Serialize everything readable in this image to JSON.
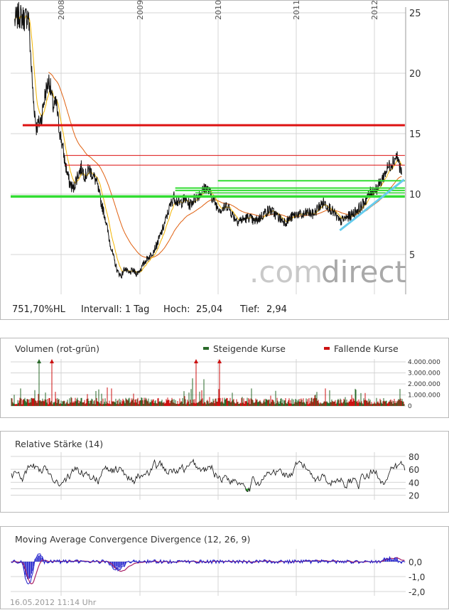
{
  "price_panel": {
    "info": {
      "perf": "751,70%HL",
      "interval": "Intervall: 1 Tag",
      "high_label": "Hoch:",
      "high_value": "25,04",
      "low_label": "Tief:",
      "low_value": "2,94"
    },
    "watermark_dot": ".com",
    "watermark_brand": "direct"
  },
  "volume_panel": {
    "title": "Volumen (rot-grün)",
    "legend_up": "Steigende Kurse",
    "legend_down": "Fallende Kurse"
  },
  "rsi_panel": {
    "title": "Relative Stärke (14)"
  },
  "macd_panel": {
    "title": "Moving Average Convergence Divergence (12, 26, 9)"
  },
  "footer": {
    "timestamp": "16.05.2012 11:14 Uhr"
  },
  "colors": {
    "price": "#111111",
    "ma_short": "#f2b400",
    "ma_long": "#e06010",
    "support": "#33dd33",
    "resistance": "#dd1111",
    "trend": "#66ccee",
    "volume_up": "#2a6a2a",
    "volume_down": "#cc1111",
    "macd": "#2222cc",
    "signal": "#aa2266",
    "watermark": "#c4c4c4"
  },
  "chart_data": [
    {
      "type": "line",
      "x_ticks": [
        "2008",
        "2009",
        "2010",
        "2011",
        "2012"
      ],
      "y_ticks": [
        "5",
        "10",
        "15",
        "20",
        "25"
      ],
      "ylim": [
        1.8,
        25.8
      ],
      "grid": true,
      "anchors": [
        [
          2007.55,
          24.3
        ],
        [
          2007.6,
          24.8
        ],
        [
          2007.68,
          24.5
        ],
        [
          2007.72,
          24.9
        ],
        [
          2007.78,
          18.0
        ],
        [
          2007.82,
          15.5
        ],
        [
          2007.88,
          16.2
        ],
        [
          2007.93,
          18.3
        ],
        [
          2007.98,
          19.5
        ],
        [
          2008.03,
          17.2
        ],
        [
          2008.07,
          17.5
        ],
        [
          2008.1,
          15.6
        ],
        [
          2008.14,
          14.2
        ],
        [
          2008.18,
          12.5
        ],
        [
          2008.23,
          11.0
        ],
        [
          2008.28,
          10.4
        ],
        [
          2008.33,
          11.5
        ],
        [
          2008.38,
          12.2
        ],
        [
          2008.43,
          11.5
        ],
        [
          2008.48,
          12.1
        ],
        [
          2008.52,
          11.6
        ],
        [
          2008.57,
          11.0
        ],
        [
          2008.62,
          9.5
        ],
        [
          2008.68,
          8.0
        ],
        [
          2008.73,
          6.2
        ],
        [
          2008.78,
          4.8
        ],
        [
          2008.83,
          3.6
        ],
        [
          2008.88,
          3.2
        ],
        [
          2008.92,
          3.9
        ],
        [
          2008.97,
          3.4
        ],
        [
          2009.02,
          3.7
        ],
        [
          2009.07,
          3.4
        ],
        [
          2009.12,
          3.8
        ],
        [
          2009.18,
          4.5
        ],
        [
          2009.25,
          5.0
        ],
        [
          2009.32,
          5.8
        ],
        [
          2009.4,
          7.2
        ],
        [
          2009.47,
          8.7
        ],
        [
          2009.53,
          9.8
        ],
        [
          2009.6,
          9.2
        ],
        [
          2009.67,
          9.6
        ],
        [
          2009.73,
          9.1
        ],
        [
          2009.8,
          9.7
        ],
        [
          2009.87,
          10.1
        ],
        [
          2009.93,
          10.6
        ],
        [
          2010.0,
          9.9
        ],
        [
          2010.07,
          9.0
        ],
        [
          2010.13,
          8.7
        ],
        [
          2010.2,
          9.1
        ],
        [
          2010.27,
          8.2
        ],
        [
          2010.33,
          7.8
        ],
        [
          2010.4,
          7.9
        ],
        [
          2010.47,
          8.1
        ],
        [
          2010.53,
          7.7
        ],
        [
          2010.6,
          8.0
        ],
        [
          2010.67,
          8.5
        ],
        [
          2010.73,
          8.7
        ],
        [
          2010.8,
          8.3
        ],
        [
          2010.87,
          7.9
        ],
        [
          2010.93,
          7.7
        ],
        [
          2011.0,
          8.1
        ],
        [
          2011.07,
          8.4
        ],
        [
          2011.13,
          8.2
        ],
        [
          2011.2,
          8.5
        ],
        [
          2011.27,
          8.3
        ],
        [
          2011.33,
          8.9
        ],
        [
          2011.4,
          9.3
        ],
        [
          2011.47,
          8.9
        ],
        [
          2011.53,
          8.4
        ],
        [
          2011.6,
          7.7
        ],
        [
          2011.67,
          8.0
        ],
        [
          2011.73,
          8.2
        ],
        [
          2011.8,
          8.6
        ],
        [
          2011.87,
          9.0
        ],
        [
          2011.93,
          9.6
        ],
        [
          2012.0,
          10.3
        ],
        [
          2012.07,
          10.5
        ],
        [
          2012.13,
          11.3
        ],
        [
          2012.2,
          12.2
        ],
        [
          2012.27,
          12.8
        ],
        [
          2012.31,
          13.2
        ],
        [
          2012.34,
          12.5
        ],
        [
          2012.37,
          11.6
        ]
      ],
      "horizontal_lines": [
        {
          "color": "resistance",
          "y": 15.7,
          "from": 2007.65,
          "to": 2012.41,
          "width": 3
        },
        {
          "color": "resistance",
          "y": 13.2,
          "from": 2008.18,
          "to": 2012.41,
          "width": 1
        },
        {
          "color": "resistance",
          "y": 12.4,
          "from": 2008.18,
          "to": 2012.41,
          "width": 1
        },
        {
          "color": "support",
          "y": 9.8,
          "from": 2007.5,
          "to": 2012.41,
          "width": 3.5
        },
        {
          "color": "support",
          "y": 11.1,
          "from": 2010.08,
          "to": 2012.41,
          "width": 2
        },
        {
          "color": "support",
          "y": 10.5,
          "from": 2009.55,
          "to": 2012.41,
          "width": 2
        },
        {
          "color": "support",
          "y": 10.3,
          "from": 2009.55,
          "to": 2012.41,
          "width": 2
        },
        {
          "color": "support",
          "y": 10.1,
          "from": 2009.8,
          "to": 2012.41,
          "width": 1.5
        }
      ],
      "trend_line": {
        "from": [
          2011.6,
          7.0
        ],
        "to": [
          2012.4,
          11.2
        ]
      }
    },
    {
      "type": "bar",
      "y_ticks": [
        "4.000.000",
        "3.000.000",
        "2.000.000",
        "1.000.000",
        "0"
      ],
      "ylim": [
        0,
        4000000
      ]
    },
    {
      "type": "line",
      "y_ticks": [
        "80",
        "60",
        "40",
        "20"
      ],
      "ylim": [
        10,
        85
      ]
    },
    {
      "type": "line",
      "y_ticks": [
        "0,0",
        "-1,0",
        "-2,0"
      ],
      "ylim": [
        -2.3,
        0.5
      ]
    }
  ]
}
